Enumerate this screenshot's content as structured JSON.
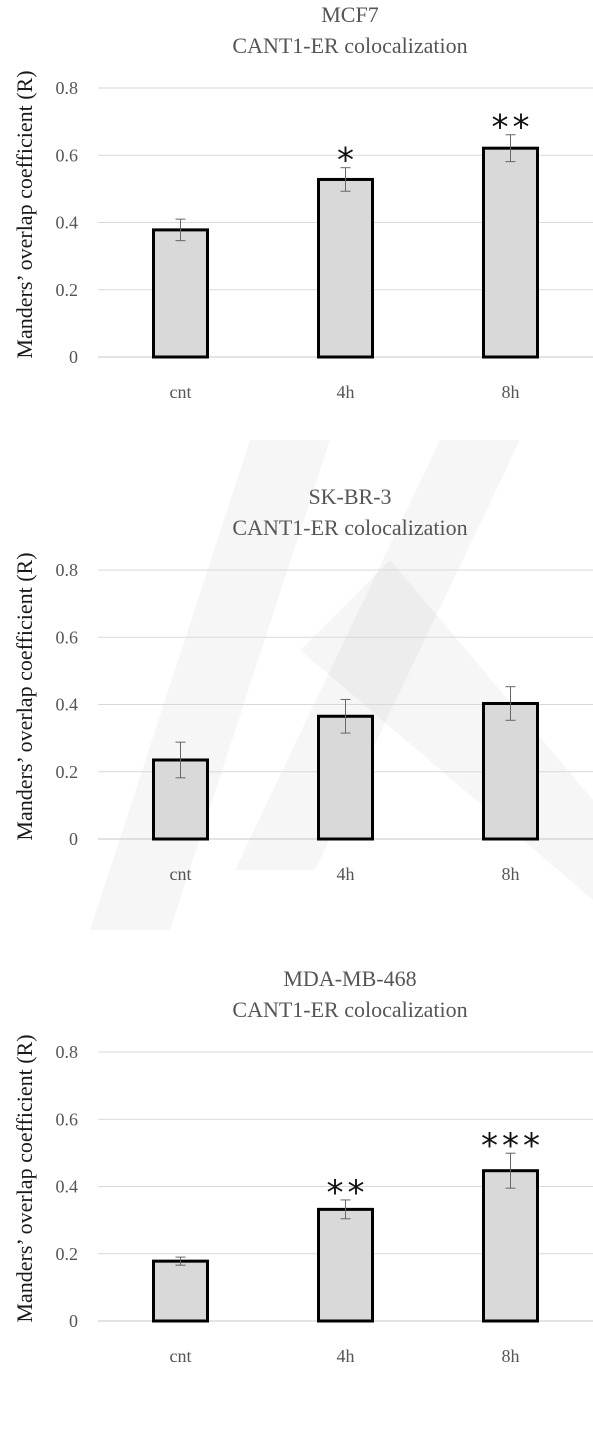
{
  "colors": {
    "bar_fill": "#d9d9d9",
    "bar_stroke": "#000000",
    "gridline": "#d9d9d9",
    "text": "#555555"
  },
  "chart_data": [
    {
      "type": "bar",
      "title": [
        "MCF7",
        "CANT1-ER colocalization"
      ],
      "ylabel": "Manders’ overlap coefficient (R)",
      "xlabel": "",
      "ylim": [
        0,
        0.8
      ],
      "yticks": [
        "0",
        "0.2",
        "0.4",
        "0.6",
        "0.8"
      ],
      "grid": true,
      "categories": [
        "cnt",
        "4h",
        "8h"
      ],
      "values": [
        0.378,
        0.528,
        0.621
      ],
      "errors": [
        0.032,
        0.035,
        0.04
      ],
      "annotations": [
        "",
        "*",
        "**"
      ]
    },
    {
      "type": "bar",
      "title": [
        "SK-BR-3",
        "CANT1-ER colocalization"
      ],
      "ylabel": "Manders’ overlap coefficient (R)",
      "xlabel": "",
      "ylim": [
        0,
        0.8
      ],
      "yticks": [
        "0",
        "0.2",
        "0.4",
        "0.6",
        "0.8"
      ],
      "grid": true,
      "categories": [
        "cnt",
        "4h",
        "8h"
      ],
      "values": [
        0.235,
        0.365,
        0.403
      ],
      "errors": [
        0.053,
        0.05,
        0.05
      ],
      "annotations": [
        "",
        "",
        ""
      ]
    },
    {
      "type": "bar",
      "title": [
        "MDA-MB-468",
        "CANT1-ER colocalization"
      ],
      "ylabel": "Manders’ overlap coefficient (R)",
      "xlabel": "",
      "ylim": [
        0,
        0.8
      ],
      "yticks": [
        "0",
        "0.2",
        "0.4",
        "0.6",
        "0.8"
      ],
      "grid": true,
      "categories": [
        "cnt",
        "4h",
        "8h"
      ],
      "values": [
        0.178,
        0.332,
        0.447
      ],
      "errors": [
        0.012,
        0.028,
        0.052
      ],
      "annotations": [
        "",
        "**",
        "***"
      ]
    }
  ]
}
